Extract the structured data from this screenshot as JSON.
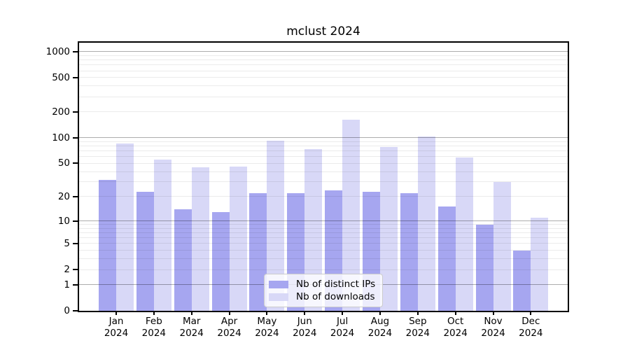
{
  "title": "mclust 2024",
  "chart_data": {
    "type": "bar",
    "title": "mclust 2024",
    "x_axis": {
      "categories": [
        "Jan",
        "Feb",
        "Mar",
        "Apr",
        "May",
        "Jun",
        "Jul",
        "Aug",
        "Sep",
        "Oct",
        "Nov",
        "Dec"
      ],
      "year_label": "2024"
    },
    "series": [
      {
        "name": "Nb of distinct IPs",
        "color": "#a6a6f0",
        "values": [
          32,
          23,
          14,
          13,
          22,
          22,
          24,
          23,
          22,
          15,
          9,
          4
        ]
      },
      {
        "name": "Nb of downloads",
        "color": "#d8d8f7",
        "values": [
          86,
          55,
          45,
          46,
          93,
          74,
          162,
          78,
          103,
          59,
          30,
          11
        ]
      }
    ],
    "y_axis": {
      "scale": "log1p",
      "tick_values": [
        0,
        1,
        2,
        5,
        10,
        20,
        50,
        100,
        200,
        500,
        1000
      ],
      "tick_labels": [
        "0",
        "1",
        "2",
        "5",
        "10",
        "20",
        "50",
        "100",
        "200",
        "500",
        "1000"
      ],
      "display_max": 1270,
      "major_grid_values": [
        1,
        10,
        100,
        1000
      ],
      "minor_grid_values": [
        2,
        3,
        4,
        5,
        6,
        7,
        8,
        9,
        20,
        30,
        40,
        50,
        60,
        70,
        80,
        90,
        200,
        300,
        400,
        500,
        600,
        700,
        800,
        900
      ]
    },
    "legend": {
      "position": "bottom-center",
      "entries": [
        "Nb of distinct IPs",
        "Nb of downloads"
      ]
    },
    "grid": true
  },
  "colors": {
    "background": "#ffffff",
    "axis": "#000000",
    "text": "#000000",
    "major_grid": "rgba(0,0,0,0.32)",
    "minor_grid": "rgba(0,0,0,0.08)",
    "legend_border": "#cccccc"
  }
}
